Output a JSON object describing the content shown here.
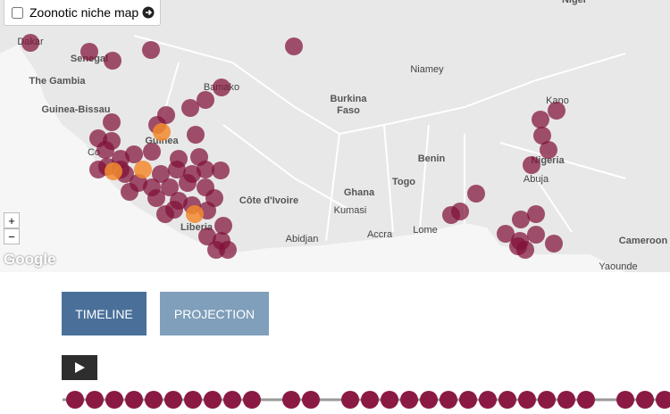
{
  "map": {
    "control": {
      "label": "Zoonotic niche map"
    },
    "zoom": {
      "in": "+",
      "out": "−"
    },
    "attribution": "Google",
    "labels": [
      {
        "text": "Niger"
      },
      {
        "text": "Dakar"
      },
      {
        "text": "Senegal"
      },
      {
        "text": "The Gambia"
      },
      {
        "text": "Guinea-Bissau"
      },
      {
        "text": "Guinea"
      },
      {
        "text": "Bamako"
      },
      {
        "text": "Niamey"
      },
      {
        "text": "Burkina"
      },
      {
        "text": "Faso"
      },
      {
        "text": "Benin"
      },
      {
        "text": "Togo"
      },
      {
        "text": "Ghana"
      },
      {
        "text": "Kumasi"
      },
      {
        "text": "Côte d'Ivoire"
      },
      {
        "text": "Accra"
      },
      {
        "text": "Lome"
      },
      {
        "text": "Abidjan"
      },
      {
        "text": "Liberia"
      },
      {
        "text": "Kano"
      },
      {
        "text": "Nigeria"
      },
      {
        "text": "Abuja"
      },
      {
        "text": "Cameroon"
      },
      {
        "text": "Yaounde"
      },
      {
        "text": "Co"
      }
    ]
  },
  "buttons": [
    "TIMELINE",
    "PROJECTION"
  ]
}
